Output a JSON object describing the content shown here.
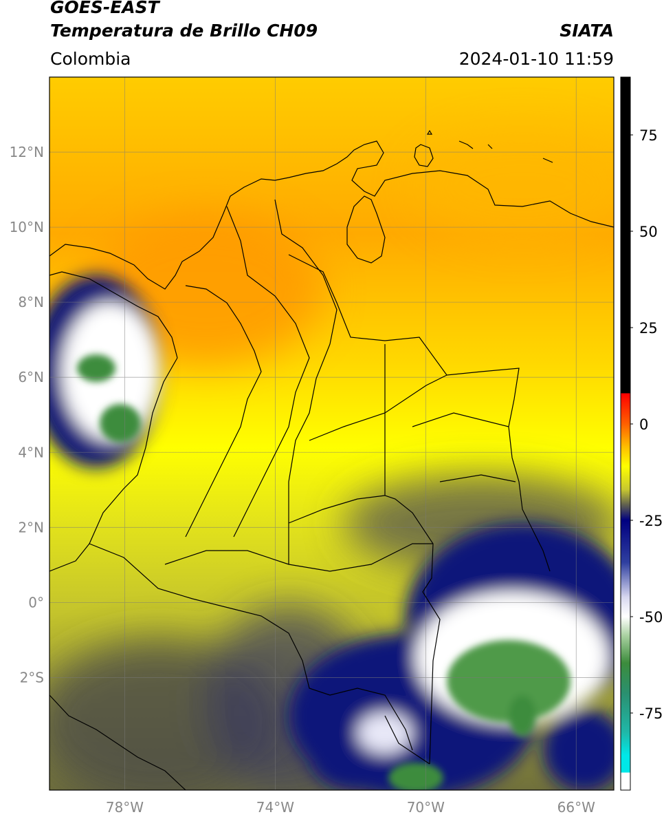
{
  "header": {
    "satellite": "GOES-EAST",
    "product": "Temperatura de Brillo CH09",
    "agency": "SIATA",
    "region": "Colombia",
    "timestamp": "2024-01-10 11:59"
  },
  "map": {
    "lon_range": [
      -80,
      -65
    ],
    "lat_range": [
      -5,
      14
    ],
    "latitude_ticks": [
      {
        "value": 12,
        "label": "12°N"
      },
      {
        "value": 10,
        "label": "10°N"
      },
      {
        "value": 8,
        "label": "8°N"
      },
      {
        "value": 6,
        "label": "6°N"
      },
      {
        "value": 4,
        "label": "4°N"
      },
      {
        "value": 2,
        "label": "2°N"
      },
      {
        "value": 0,
        "label": "0°"
      },
      {
        "value": -2,
        "label": "2°S"
      }
    ],
    "longitude_ticks": [
      {
        "value": -78,
        "label": "78°W"
      },
      {
        "value": -74,
        "label": "74°W"
      },
      {
        "value": -70,
        "label": "70°W"
      },
      {
        "value": -66,
        "label": "66°W"
      }
    ],
    "gridlines": true
  },
  "colorbar": {
    "range": [
      -95,
      90
    ],
    "ticks": [
      {
        "value": 75,
        "label": "75"
      },
      {
        "value": 50,
        "label": "50"
      },
      {
        "value": 25,
        "label": "25"
      },
      {
        "value": 0,
        "label": "0"
      },
      {
        "value": -25,
        "label": "-25"
      },
      {
        "value": -50,
        "label": "-50"
      },
      {
        "value": -75,
        "label": "-75"
      }
    ],
    "stops": [
      {
        "value": 90,
        "color": "#000000"
      },
      {
        "value": 8,
        "color": "#000000"
      },
      {
        "value": 7.9,
        "color": "#ff0000"
      },
      {
        "value": 0,
        "color": "#ff6000"
      },
      {
        "value": -6,
        "color": "#ffbf00"
      },
      {
        "value": -11,
        "color": "#ffff00"
      },
      {
        "value": -17,
        "color": "#c8c830"
      },
      {
        "value": -21,
        "color": "#606050"
      },
      {
        "value": -25,
        "color": "#000080"
      },
      {
        "value": -36,
        "color": "#3040a0"
      },
      {
        "value": -45,
        "color": "#d8d8f0"
      },
      {
        "value": -50,
        "color": "#ffffff"
      },
      {
        "value": -55,
        "color": "#a8d0a0"
      },
      {
        "value": -62,
        "color": "#3c8c3c"
      },
      {
        "value": -70,
        "color": "#2a9070"
      },
      {
        "value": -80,
        "color": "#20b8a8"
      },
      {
        "value": -86,
        "color": "#00e8e8"
      },
      {
        "value": -90.4,
        "color": "#00e8e8"
      },
      {
        "value": -90.5,
        "color": "#ffffff"
      },
      {
        "value": -95,
        "color": "#ffffff"
      }
    ]
  },
  "colors": {
    "warm_clear_sky": "#ffb000",
    "mid_level": "#ffee00",
    "cold_cloud_blue": "#10127a",
    "very_cold_white": "#ffffff",
    "coldest_green": "#3c8c3c"
  }
}
